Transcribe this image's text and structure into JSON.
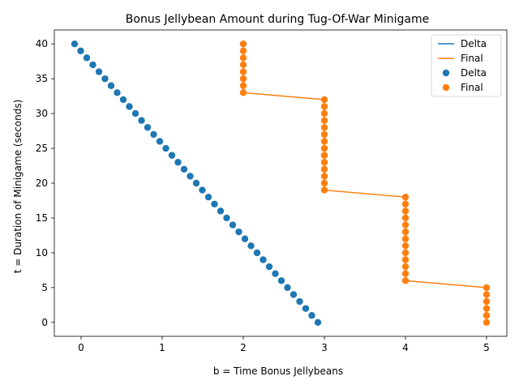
{
  "chart_data": {
    "type": "scatter",
    "title": "Bonus Jellybean Amount during Tug-Of-War Minigame",
    "xlabel": "b = Time Bonus Jellybeans",
    "ylabel": "t = Duration of Minigame (seconds)",
    "xlim": [
      -0.33,
      5.25
    ],
    "ylim": [
      -2.0,
      42.0
    ],
    "xticks": [
      0,
      1,
      2,
      3,
      4,
      5
    ],
    "yticks": [
      0,
      5,
      10,
      15,
      20,
      25,
      30,
      35,
      40
    ],
    "grid": false,
    "legend_position": "upper right",
    "legend_entries": [
      {
        "label": "Delta",
        "kind": "line",
        "color": "#1f77b4"
      },
      {
        "label": "Final",
        "kind": "line",
        "color": "#ff7f0e"
      },
      {
        "label": "Delta",
        "kind": "marker",
        "color": "#1f77b4"
      },
      {
        "label": "Final",
        "kind": "marker",
        "color": "#ff7f0e"
      }
    ],
    "series": [
      {
        "name": "Delta",
        "color": "#1f77b4",
        "show_line": false,
        "points": [
          [
            -0.08,
            40
          ],
          [
            -0.005,
            39
          ],
          [
            0.07,
            38
          ],
          [
            0.145,
            37
          ],
          [
            0.22,
            36
          ],
          [
            0.295,
            35
          ],
          [
            0.37,
            34
          ],
          [
            0.445,
            33
          ],
          [
            0.52,
            32
          ],
          [
            0.595,
            31
          ],
          [
            0.67,
            30
          ],
          [
            0.745,
            29
          ],
          [
            0.82,
            28
          ],
          [
            0.895,
            27
          ],
          [
            0.97,
            26
          ],
          [
            1.045,
            25
          ],
          [
            1.12,
            24
          ],
          [
            1.195,
            23
          ],
          [
            1.27,
            22
          ],
          [
            1.345,
            21
          ],
          [
            1.42,
            20
          ],
          [
            1.495,
            19
          ],
          [
            1.57,
            18
          ],
          [
            1.645,
            17
          ],
          [
            1.72,
            16
          ],
          [
            1.795,
            15
          ],
          [
            1.87,
            14
          ],
          [
            1.945,
            13
          ],
          [
            2.02,
            12
          ],
          [
            2.095,
            11
          ],
          [
            2.17,
            10
          ],
          [
            2.245,
            9
          ],
          [
            2.32,
            8
          ],
          [
            2.395,
            7
          ],
          [
            2.47,
            6
          ],
          [
            2.545,
            5
          ],
          [
            2.62,
            4
          ],
          [
            2.695,
            3
          ],
          [
            2.77,
            2
          ],
          [
            2.845,
            1
          ],
          [
            2.92,
            0
          ]
        ]
      },
      {
        "name": "Final",
        "color": "#ff7f0e",
        "show_line": true,
        "points": [
          [
            2,
            40
          ],
          [
            2,
            39
          ],
          [
            2,
            38
          ],
          [
            2,
            37
          ],
          [
            2,
            36
          ],
          [
            2,
            35
          ],
          [
            2,
            34
          ],
          [
            2,
            33
          ],
          [
            3,
            32
          ],
          [
            3,
            31
          ],
          [
            3,
            30
          ],
          [
            3,
            29
          ],
          [
            3,
            28
          ],
          [
            3,
            27
          ],
          [
            3,
            26
          ],
          [
            3,
            25
          ],
          [
            3,
            24
          ],
          [
            3,
            23
          ],
          [
            3,
            22
          ],
          [
            3,
            21
          ],
          [
            3,
            20
          ],
          [
            3,
            19
          ],
          [
            4,
            18
          ],
          [
            4,
            17
          ],
          [
            4,
            16
          ],
          [
            4,
            15
          ],
          [
            4,
            14
          ],
          [
            4,
            13
          ],
          [
            4,
            12
          ],
          [
            4,
            11
          ],
          [
            4,
            10
          ],
          [
            4,
            9
          ],
          [
            4,
            8
          ],
          [
            4,
            7
          ],
          [
            4,
            6
          ],
          [
            5,
            5
          ],
          [
            5,
            4
          ],
          [
            5,
            3
          ],
          [
            5,
            2
          ],
          [
            5,
            1
          ],
          [
            5,
            0
          ]
        ]
      }
    ]
  }
}
